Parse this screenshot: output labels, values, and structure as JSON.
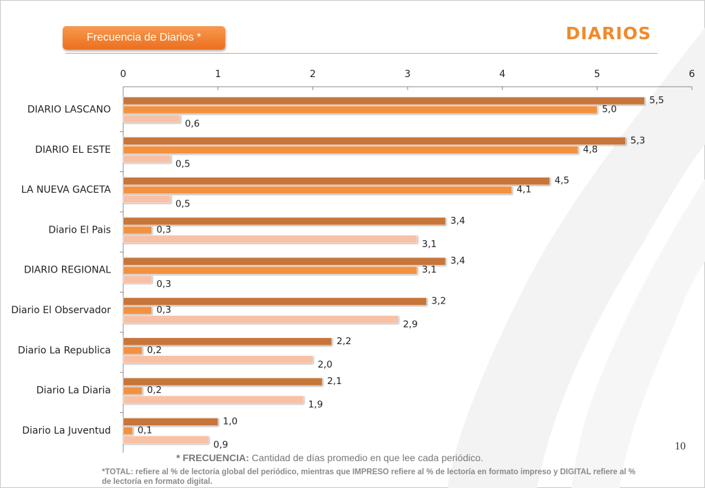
{
  "header": {
    "tag_label": "Frecuencia de Diarios  *",
    "brand": "DIARIOS"
  },
  "colors": {
    "series1": "#c8753a",
    "series2": "#f4913f",
    "series3": "#f8c0a4",
    "accent": "#f08a2c"
  },
  "chart_data": {
    "type": "bar",
    "orientation": "horizontal",
    "categories": [
      "DIARIO LASCANO",
      "DIARIO EL ESTE",
      "LA NUEVA GACETA",
      "Diario El Pais",
      "DIARIO REGIONAL",
      "Diario El Observador",
      "Diario La Republica",
      "Diario La Diaria",
      "Diario La Juventud"
    ],
    "series": [
      {
        "values": [
          5.5,
          5.3,
          4.5,
          3.4,
          3.4,
          3.2,
          2.2,
          2.1,
          1.0
        ],
        "labels": [
          "5,5",
          "5,3",
          "4,5",
          "3,4",
          "3,4",
          "3,2",
          "2,2",
          "2,1",
          "1,0"
        ]
      },
      {
        "values": [
          5.0,
          4.8,
          4.1,
          0.3,
          3.1,
          0.3,
          0.2,
          0.2,
          0.1
        ],
        "labels": [
          "5,0",
          "4,8",
          "4,1",
          "0,3",
          "3,1",
          "0,3",
          "0,2",
          "0,2",
          "0,1"
        ]
      },
      {
        "values": [
          0.6,
          0.5,
          0.5,
          3.1,
          0.3,
          2.9,
          2.0,
          1.9,
          0.9
        ],
        "labels": [
          "0,6",
          "0,5",
          "0,5",
          "3,1",
          "0,3",
          "2,9",
          "2,0",
          "1,9",
          "0,9"
        ]
      }
    ],
    "xlim": [
      0,
      6
    ],
    "x_ticks": [
      "0",
      "1",
      "2",
      "3",
      "4",
      "5",
      "6"
    ],
    "axis_position": "top",
    "legend": "none"
  },
  "footer": {
    "page_number": "10",
    "note_bold": "* FRECUENCIA:",
    "note_text": " Cantidad  de días promedio en que lee cada periódico.",
    "total_note": "*TOTAL: refiere al % de lectoría global del periódico, mientras que IMPRESO refiere al % de lectoría en formato impreso y DIGITAL refiere al % de lectoría en formato digital."
  }
}
